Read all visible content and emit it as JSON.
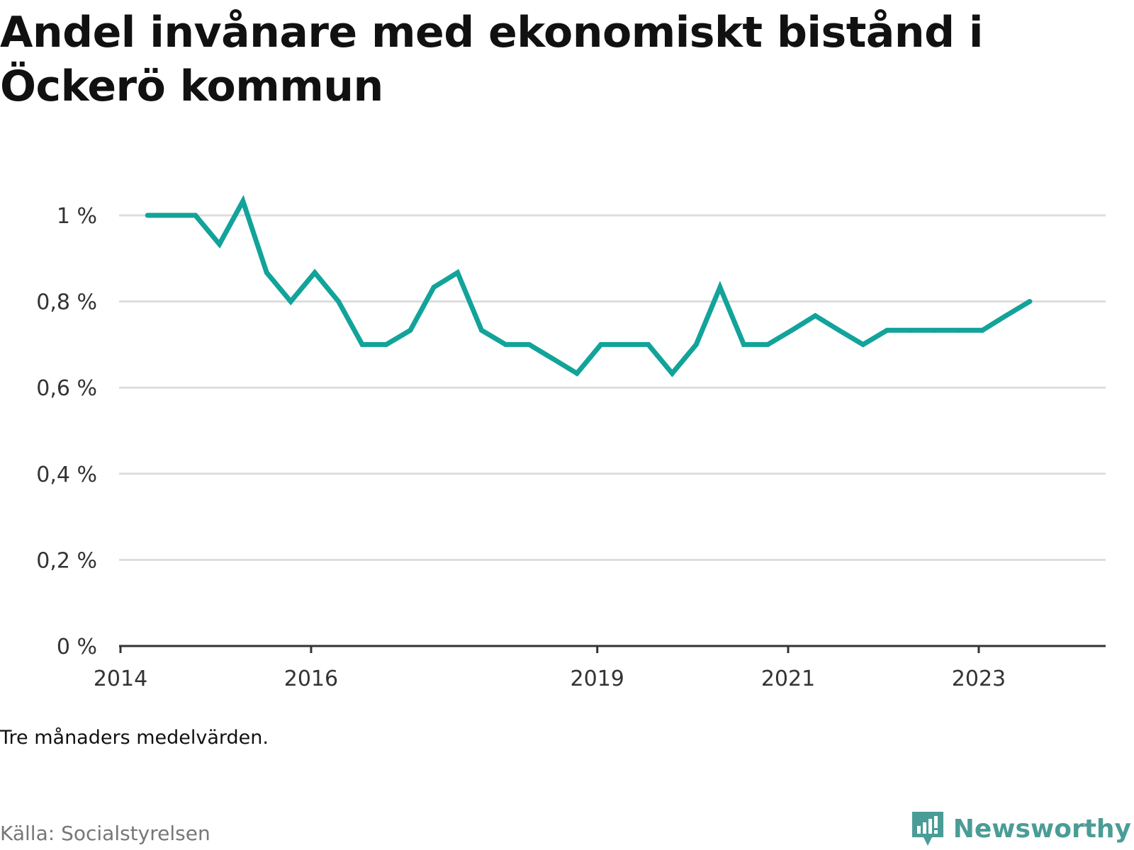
{
  "title": "Andel invånare med ekonomiskt bistånd i Öckerö kommun",
  "note": "Tre månaders medelvärden.",
  "source": "Källa: Socialstyrelsen",
  "brand": {
    "name": "Newsworthy",
    "logo_icon": "newsworthy-bar-chart-logo-icon",
    "color": "#4a9d96"
  },
  "chart_data": {
    "type": "line",
    "title": "Andel invånare med ekonomiskt bistånd i Öckerö kommun",
    "xlabel": "",
    "ylabel": "",
    "x_ticks": [
      "2014",
      "2016",
      "2019",
      "2021",
      "2023"
    ],
    "y_ticks": [
      {
        "value": 0,
        "label": "0 %"
      },
      {
        "value": 0.2,
        "label": "0,2 %"
      },
      {
        "value": 0.4,
        "label": "0,4 %"
      },
      {
        "value": 0.6,
        "label": "0,6 %"
      },
      {
        "value": 0.8,
        "label": "0,8 %"
      },
      {
        "value": 1.0,
        "label": "1 %"
      }
    ],
    "xlim": [
      "2014-01-01",
      "2024-05-01"
    ],
    "ylim": [
      0,
      1.05
    ],
    "grid": true,
    "line_color": "#12a39a",
    "series": [
      {
        "points": [
          {
            "date": "2014-04-15",
            "value": 1.0
          },
          {
            "date": "2014-07-15",
            "value": 1.0
          },
          {
            "date": "2014-10-15",
            "value": 1.0
          },
          {
            "date": "2015-01-15",
            "value": 0.933
          },
          {
            "date": "2015-04-15",
            "value": 1.033
          },
          {
            "date": "2015-07-15",
            "value": 0.867
          },
          {
            "date": "2015-10-15",
            "value": 0.8
          },
          {
            "date": "2016-01-15",
            "value": 0.867
          },
          {
            "date": "2016-04-15",
            "value": 0.8
          },
          {
            "date": "2016-07-15",
            "value": 0.7
          },
          {
            "date": "2016-10-15",
            "value": 0.7
          },
          {
            "date": "2017-01-15",
            "value": 0.733
          },
          {
            "date": "2017-04-15",
            "value": 0.833
          },
          {
            "date": "2017-07-15",
            "value": 0.867
          },
          {
            "date": "2017-10-15",
            "value": 0.733
          },
          {
            "date": "2018-01-15",
            "value": 0.7
          },
          {
            "date": "2018-04-15",
            "value": 0.7
          },
          {
            "date": "2018-07-15",
            "value": 0.667
          },
          {
            "date": "2018-10-15",
            "value": 0.633
          },
          {
            "date": "2019-01-15",
            "value": 0.7
          },
          {
            "date": "2019-04-15",
            "value": 0.7
          },
          {
            "date": "2019-07-15",
            "value": 0.7
          },
          {
            "date": "2019-10-15",
            "value": 0.633
          },
          {
            "date": "2020-01-15",
            "value": 0.7
          },
          {
            "date": "2020-04-15",
            "value": 0.833
          },
          {
            "date": "2020-07-15",
            "value": 0.7
          },
          {
            "date": "2020-10-15",
            "value": 0.7
          },
          {
            "date": "2021-01-15",
            "value": 0.733
          },
          {
            "date": "2021-04-15",
            "value": 0.767
          },
          {
            "date": "2021-07-15",
            "value": 0.733
          },
          {
            "date": "2021-10-15",
            "value": 0.7
          },
          {
            "date": "2022-01-15",
            "value": 0.733
          },
          {
            "date": "2022-04-15",
            "value": 0.733
          },
          {
            "date": "2022-07-15",
            "value": 0.733
          },
          {
            "date": "2022-10-15",
            "value": 0.733
          },
          {
            "date": "2023-01-15",
            "value": 0.733
          },
          {
            "date": "2023-04-15",
            "value": 0.767
          },
          {
            "date": "2023-07-15",
            "value": 0.8
          }
        ]
      }
    ]
  }
}
